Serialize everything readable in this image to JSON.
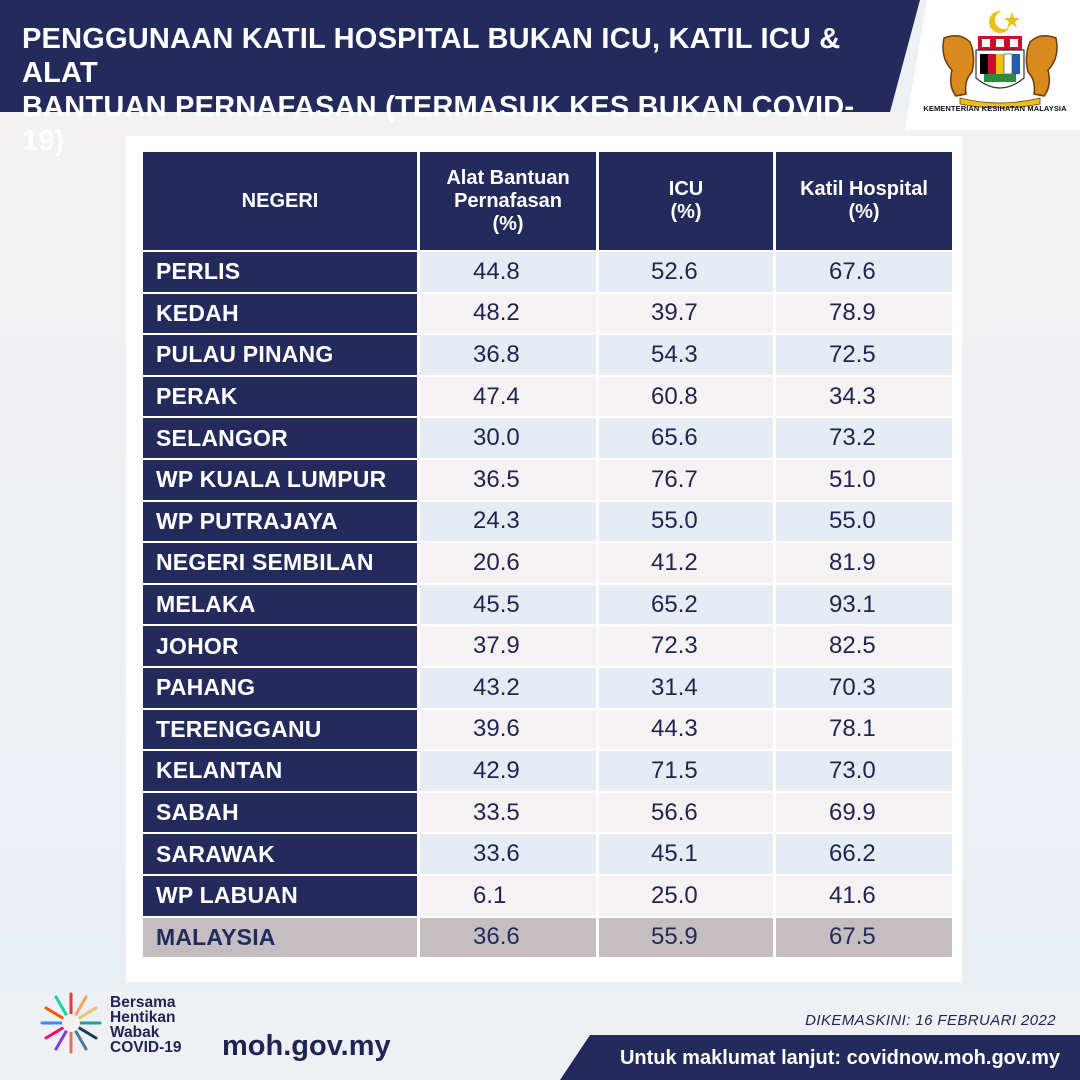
{
  "header": {
    "title_line1": "PENGGUNAAN KATIL HOSPITAL BUKAN ICU, KATIL ICU & ALAT",
    "title_line2": "BANTUAN PERNAFASAN (TERMASUK KES BUKAN COVID-19)",
    "ministry": "KEMENTERIAN KESIHATAN MALAYSIA"
  },
  "table": {
    "headers": {
      "state": "NEGERI",
      "ventilator_l1": "Alat Bantuan",
      "ventilator_l2": "Pernafasan",
      "ventilator_l3": "(%)",
      "icu_l1": "ICU",
      "icu_l2": "(%)",
      "hospital_l1": "Katil  Hospital",
      "hospital_l2": "(%)"
    },
    "rows": [
      {
        "state": "PERLIS",
        "ventilator": "44.8",
        "icu": "52.6",
        "hospital": "67.6"
      },
      {
        "state": "KEDAH",
        "ventilator": "48.2",
        "icu": "39.7",
        "hospital": "78.9"
      },
      {
        "state": "PULAU PINANG",
        "ventilator": "36.8",
        "icu": "54.3",
        "hospital": "72.5"
      },
      {
        "state": "PERAK",
        "ventilator": "47.4",
        "icu": "60.8",
        "hospital": "34.3"
      },
      {
        "state": "SELANGOR",
        "ventilator": "30.0",
        "icu": "65.6",
        "hospital": "73.2"
      },
      {
        "state": "WP KUALA LUMPUR",
        "ventilator": "36.5",
        "icu": "76.7",
        "hospital": "51.0"
      },
      {
        "state": "WP PUTRAJAYA",
        "ventilator": "24.3",
        "icu": "55.0",
        "hospital": "55.0"
      },
      {
        "state": "NEGERI SEMBILAN",
        "ventilator": "20.6",
        "icu": "41.2",
        "hospital": "81.9"
      },
      {
        "state": "MELAKA",
        "ventilator": "45.5",
        "icu": "65.2",
        "hospital": "93.1"
      },
      {
        "state": "JOHOR",
        "ventilator": "37.9",
        "icu": "72.3",
        "hospital": "82.5"
      },
      {
        "state": "PAHANG",
        "ventilator": "43.2",
        "icu": "31.4",
        "hospital": "70.3"
      },
      {
        "state": "TERENGGANU",
        "ventilator": "39.6",
        "icu": "44.3",
        "hospital": "78.1"
      },
      {
        "state": "KELANTAN",
        "ventilator": "42.9",
        "icu": "71.5",
        "hospital": "73.0"
      },
      {
        "state": "SABAH",
        "ventilator": "33.5",
        "icu": "56.6",
        "hospital": "69.9"
      },
      {
        "state": "SARAWAK",
        "ventilator": "33.6",
        "icu": "45.1",
        "hospital": "66.2"
      },
      {
        "state": "WP LABUAN",
        "ventilator": "6.1",
        "icu": "25.0",
        "hospital": "41.6"
      }
    ],
    "total": {
      "state": "MALAYSIA",
      "ventilator": "36.6",
      "icu": "55.9",
      "hospital": "67.5"
    }
  },
  "footer": {
    "updated": "DIKEMASKINI: 16 FEBRUARI 2022",
    "campaign_l1": "Bersama",
    "campaign_l2": "Hentikan",
    "campaign_l3": "Wabak",
    "campaign_l4": "COVID-19",
    "site": "moh.gov.my",
    "more_info": "Untuk maklumat lanjut: covidnow.moh.gov.my"
  },
  "colors": {
    "navy": "#232b5c",
    "row_blue": "#e6ecf4",
    "row_pink": "#f6f1f2",
    "total_gray": "#c4bec1"
  }
}
